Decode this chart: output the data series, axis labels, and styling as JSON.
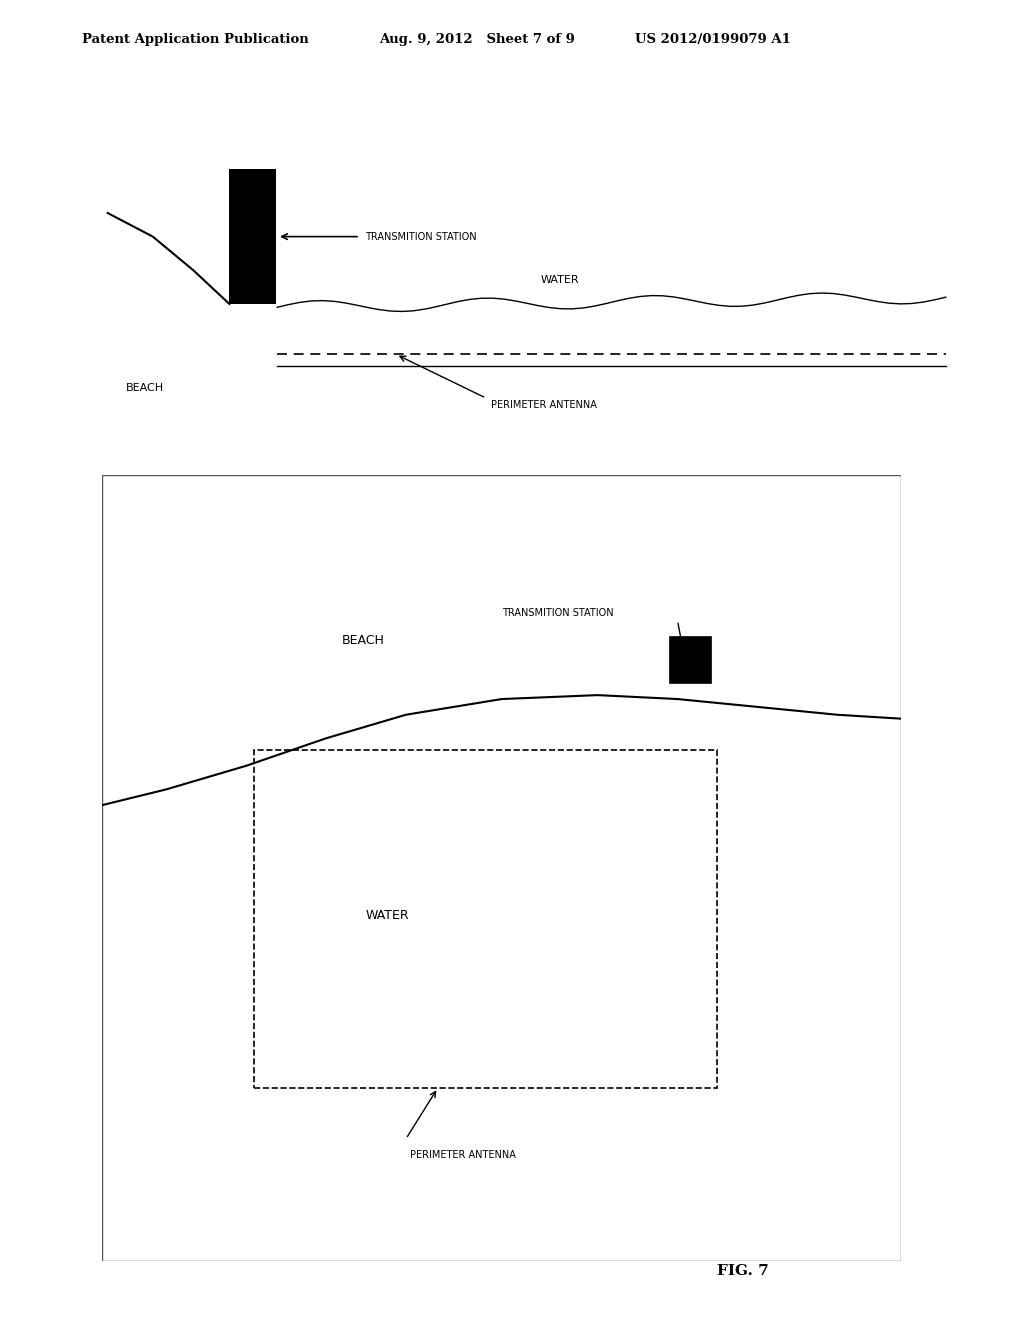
{
  "bg_color": "#ffffff",
  "header_left": "Patent Application Publication",
  "header_mid": "Aug. 9, 2012   Sheet 7 of 9",
  "header_right": "US 2012/0199079 A1",
  "fig_label": "FIG. 7"
}
